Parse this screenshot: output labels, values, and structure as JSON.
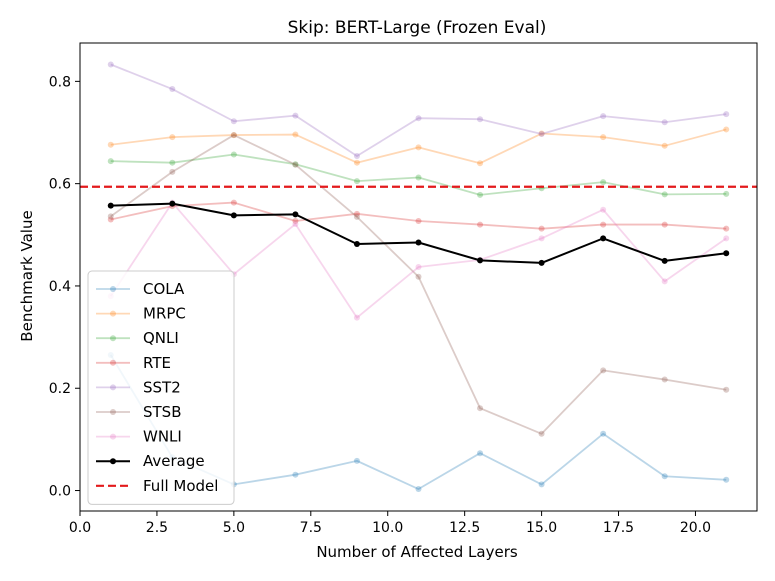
{
  "chart_data": {
    "type": "line",
    "title": "Skip: BERT-Large (Frozen Eval)",
    "xlabel": "Number of Affected Layers",
    "ylabel": "Benchmark Value",
    "xlim": [
      0.0,
      22.0
    ],
    "ylim": [
      -0.04,
      0.875
    ],
    "x_ticks": [
      0.0,
      2.5,
      5.0,
      7.5,
      10.0,
      12.5,
      15.0,
      17.5,
      20.0
    ],
    "x_tick_labels": [
      "0.0",
      "2.5",
      "5.0",
      "7.5",
      "10.0",
      "12.5",
      "15.0",
      "17.5",
      "20.0"
    ],
    "y_ticks": [
      0.0,
      0.2,
      0.4,
      0.6,
      0.8
    ],
    "y_tick_labels": [
      "0.0",
      "0.2",
      "0.4",
      "0.6",
      "0.8"
    ],
    "grid": false,
    "legend_position": "lower-left",
    "x": [
      1,
      3,
      5,
      7,
      9,
      11,
      13,
      15,
      17,
      19,
      21
    ],
    "series": [
      {
        "name": "COLA",
        "color": "#1f77b4",
        "values": [
          0.265,
          0.065,
          0.012,
          0.031,
          0.058,
          0.003,
          0.073,
          0.012,
          0.111,
          0.028,
          0.021
        ]
      },
      {
        "name": "MRPC",
        "color": "#ff7f0e",
        "values": [
          0.676,
          0.691,
          0.695,
          0.696,
          0.641,
          0.671,
          0.64,
          0.698,
          0.691,
          0.674,
          0.706
        ]
      },
      {
        "name": "QNLI",
        "color": "#2ca02c",
        "values": [
          0.644,
          0.641,
          0.657,
          0.638,
          0.605,
          0.612,
          0.578,
          0.591,
          0.603,
          0.579,
          0.58
        ]
      },
      {
        "name": "RTE",
        "color": "#d62728",
        "values": [
          0.53,
          0.556,
          0.563,
          0.527,
          0.541,
          0.527,
          0.52,
          0.512,
          0.52,
          0.52,
          0.512
        ]
      },
      {
        "name": "SST2",
        "color": "#9467bd",
        "values": [
          0.833,
          0.785,
          0.722,
          0.733,
          0.654,
          0.728,
          0.726,
          0.697,
          0.732,
          0.72,
          0.736
        ]
      },
      {
        "name": "STSB",
        "color": "#8c564b",
        "values": [
          0.536,
          0.623,
          0.695,
          0.637,
          0.535,
          0.418,
          0.161,
          0.111,
          0.235,
          0.217,
          0.197
        ]
      },
      {
        "name": "WNLI",
        "color": "#e377c2",
        "values": [
          0.38,
          0.563,
          0.423,
          0.521,
          0.338,
          0.437,
          0.451,
          0.493,
          0.549,
          0.409,
          0.493
        ]
      },
      {
        "name": "Average",
        "color": "#000000",
        "values": [
          0.557,
          0.561,
          0.538,
          0.54,
          0.482,
          0.485,
          0.45,
          0.445,
          0.493,
          0.449,
          0.464
        ]
      }
    ],
    "reference_line": {
      "name": "Full Model",
      "color": "#e31a1c",
      "y": 0.594
    }
  }
}
